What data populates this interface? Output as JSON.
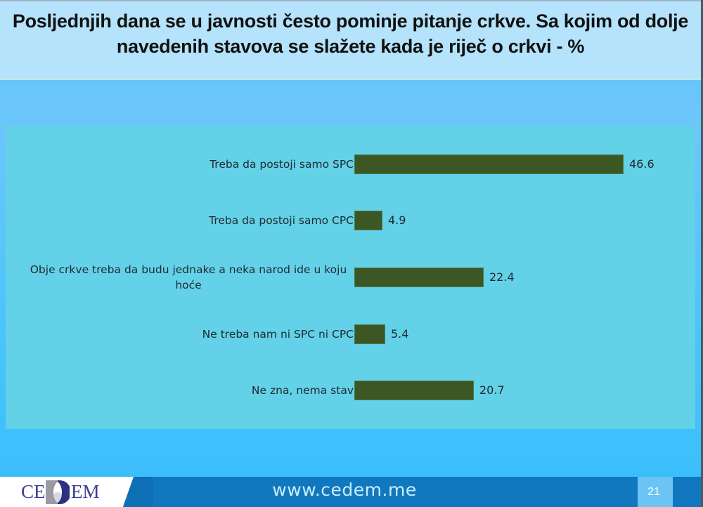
{
  "slide": {
    "title": "Posljednjih dana se u javnosti često pominje pitanje crkve. Sa kojim od dolje navedenih stavova se slažete kada je riječ o crkvi - %",
    "page_number": "21"
  },
  "footer": {
    "logo_left": "CE",
    "logo_right": "EM",
    "url": "www.cedem.me"
  },
  "colors": {
    "bar": "#3c5724",
    "plot_bg": "#63d1e7",
    "title_bg": "#b4e3fb",
    "footer_bg": "#1178bf"
  },
  "chart_data": {
    "type": "bar",
    "orientation": "horizontal",
    "title": "Posljednjih dana se u javnosti često pominje pitanje crkve. Sa kojim od dolje navedenih stavova se slažete kada je riječ o crkvi - %",
    "xlabel": "",
    "ylabel": "",
    "grid": false,
    "legend": null,
    "xlim": [
      0,
      50
    ],
    "categories": [
      "Treba da postoji samo SPC",
      "Treba da postoji samo CPC",
      "Obje crkve treba da budu jednake a neka narod ide u koju hoće",
      "Ne treba nam ni SPC ni CPC",
      "Ne zna, nema stav"
    ],
    "values": [
      46.6,
      4.9,
      22.4,
      5.4,
      20.7
    ],
    "value_labels": [
      "46.6",
      "4.9",
      "22.4",
      "5.4",
      "20.7"
    ]
  }
}
